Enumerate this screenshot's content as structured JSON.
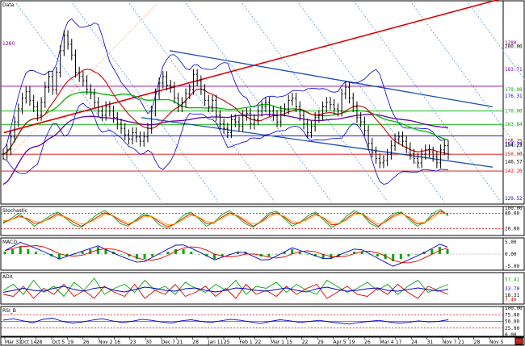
{
  "panels": {
    "price": {
      "label": "Data",
      "left_label": "1280"
    },
    "stoch": {
      "label": "Stochastic"
    },
    "macd": {
      "label": "MACD"
    },
    "adx": {
      "label": "ADX"
    },
    "rsi": {
      "label": "RSI_B"
    }
  },
  "x_ticks": [
    "Mar 31",
    "Oct 14",
    "28",
    "Oct 5",
    "19",
    "26",
    "Nov 2",
    "16",
    "23",
    "30",
    "Dec 7",
    "21",
    "28",
    "Jan 11",
    "25",
    "Feb 1",
    "22",
    "Mar 1",
    "15",
    "22",
    "29",
    "Apr 5",
    "19",
    "26",
    "Mar 4",
    "17",
    "24",
    "31",
    "Nov 7",
    "21",
    "28",
    "Nov 5"
  ],
  "colors": {
    "up": "#000000",
    "ma_red": "#cc0000",
    "ma_green": "#00bb00",
    "ma_purple": "#6600aa",
    "band": "#0000cc",
    "trend_red": "#dd0000",
    "trend_blue": "#1a4fb0",
    "hline_red": "#dd0000",
    "hline_blue": "#0000cc",
    "hline_purple": "#880088",
    "hline_green": "#00aa00",
    "dotted_blue": "#4488dd"
  },
  "chart_data": [
    {
      "type": "line",
      "name": "price",
      "title": "Data",
      "ylim": [
        128,
        220
      ],
      "y_ticks": [
        "200.00",
        "179.98",
        "170.00",
        "163.84",
        "156.25",
        "154.79",
        "154.23",
        "150.00",
        "146.57",
        "142.20",
        "129.52"
      ],
      "y_tick_colors": [
        "#000",
        "#00aa00",
        "#00aa00",
        "#00aa00",
        "#cc0000",
        "#0000cc",
        "#000",
        "#dd0000",
        "#000",
        "#dd0000",
        "#0000cc"
      ],
      "right_labels_top": [
        "1280",
        "183.71",
        "176.31"
      ],
      "right_label_top_colors": [
        "#880088",
        "#6600aa",
        "#0000cc"
      ],
      "close": [
        150,
        152,
        158,
        165,
        171,
        176,
        179,
        175,
        172,
        168,
        174,
        181,
        186,
        180,
        188,
        198,
        205,
        201,
        196,
        188,
        186,
        184,
        180,
        178,
        174,
        170,
        168,
        172,
        170,
        167,
        164,
        162,
        159,
        157,
        160,
        158,
        156,
        158,
        162,
        170,
        178,
        183,
        186,
        182,
        181,
        176,
        172,
        174,
        178,
        180,
        187,
        184,
        180,
        175,
        172,
        175,
        168,
        164,
        162,
        160,
        166,
        165,
        163,
        168,
        169,
        164,
        166,
        170,
        172,
        174,
        170,
        168,
        165,
        170,
        171,
        175,
        176,
        172,
        168,
        164,
        160,
        163,
        167,
        168,
        172,
        174,
        173,
        171,
        170,
        178,
        181,
        176,
        172,
        167,
        165,
        161,
        155,
        151,
        148,
        146,
        147,
        150,
        154,
        157,
        158,
        156,
        153,
        150,
        148,
        146,
        150,
        152,
        151,
        149,
        146,
        152,
        154,
        150
      ],
      "horizontal_levels": [
        {
          "value": 181.5,
          "color": "#880088"
        },
        {
          "value": 170.0,
          "color": "#00aa00"
        },
        {
          "value": 163.8,
          "color": "#00aa00"
        },
        {
          "value": 158.5,
          "color": "#0000cc"
        },
        {
          "value": 150.0,
          "color": "#dd0000"
        },
        {
          "value": 142.2,
          "color": "#dd0000"
        }
      ]
    },
    {
      "type": "line",
      "name": "stochastic",
      "title": "Stochastic",
      "ylim": [
        0,
        100
      ],
      "y_ticks": [
        "100.00",
        "80.00",
        "20.00"
      ],
      "series": [
        {
          "color": "#00aa00",
          "values": [
            40,
            60,
            80,
            55,
            30,
            50,
            70,
            85,
            60,
            35,
            25,
            50,
            75,
            90,
            70,
            40,
            30,
            55,
            80,
            65,
            35,
            20,
            40,
            70,
            85,
            60,
            30,
            45,
            75,
            90,
            65,
            40,
            25,
            50,
            80,
            88,
            60,
            30,
            45,
            70,
            85,
            55,
            25,
            40,
            70,
            90,
            75,
            40,
            25,
            55,
            80,
            85,
            55,
            30,
            45,
            80,
            95,
            70
          ]
        },
        {
          "color": "#dd0000",
          "values": [
            45,
            55,
            70,
            60,
            40,
            45,
            62,
            78,
            65,
            45,
            30,
            45,
            65,
            82,
            72,
            50,
            35,
            50,
            72,
            68,
            45,
            28,
            38,
            60,
            78,
            65,
            40,
            42,
            65,
            82,
            70,
            48,
            30,
            45,
            72,
            82,
            65,
            40,
            42,
            62,
            78,
            62,
            35,
            38,
            60,
            82,
            78,
            50,
            30,
            48,
            72,
            82,
            62,
            38,
            42,
            70,
            88,
            75
          ]
        },
        {
          "color": "#ff9900",
          "values": [
            50,
            55,
            65,
            62,
            48,
            46,
            58,
            72,
            66,
            52,
            38,
            44,
            58,
            76,
            72,
            56,
            42,
            48,
            66,
            68,
            52,
            36,
            38,
            54,
            72,
            66,
            48,
            44,
            60,
            76,
            72,
            54,
            38,
            44,
            64,
            78,
            68,
            48,
            44,
            56,
            72,
            64,
            44,
            40,
            54,
            76,
            78,
            58,
            38,
            46,
            66,
            78,
            66,
            46,
            44,
            62,
            82,
            78
          ]
        }
      ]
    },
    {
      "type": "bar",
      "name": "macd",
      "title": "MACD",
      "ylim": [
        -6,
        6
      ],
      "y_ticks": [
        "5.00",
        "0.00",
        "-5.00"
      ],
      "histogram": [
        1,
        2,
        3,
        2,
        1,
        0,
        -1,
        -2,
        -1,
        0,
        1,
        2,
        3,
        2,
        1,
        0,
        -1,
        -2,
        -2,
        -1,
        0,
        1,
        2,
        2,
        1,
        0,
        -1,
        -2,
        -1,
        0,
        1,
        1,
        0,
        -1,
        -1,
        0,
        1,
        2,
        1,
        0,
        -1,
        -2,
        -2,
        -1,
        0,
        1,
        1,
        0,
        -1,
        -2,
        -3,
        -2,
        -1,
        0,
        1,
        2,
        3,
        2
      ]
    },
    {
      "type": "line",
      "name": "adx",
      "title": "ADX",
      "ylim": [
        0,
        70
      ],
      "y_ticks": [
        "57.41",
        "33.70",
        "18.31",
        "7.40"
      ],
      "y_tick_colors": [
        "#00aa00",
        "#0000cc",
        "#000",
        "#dd0000"
      ],
      "series": [
        {
          "color": "#00aa00",
          "values": [
            30,
            45,
            20,
            55,
            25,
            40,
            15,
            50,
            30,
            60,
            20,
            35,
            45,
            25,
            55,
            30,
            40,
            20,
            50,
            35,
            25,
            45,
            30,
            55,
            20,
            40,
            35,
            50,
            25,
            45,
            30,
            20,
            55,
            40,
            25,
            35,
            50,
            30,
            45,
            20,
            40,
            55,
            25,
            35,
            45
          ]
        },
        {
          "color": "#dd0000",
          "values": [
            20,
            15,
            40,
            10,
            35,
            20,
            45,
            15,
            30,
            10,
            40,
            25,
            15,
            45,
            10,
            30,
            20,
            45,
            15,
            25,
            40,
            15,
            35,
            10,
            45,
            20,
            30,
            15,
            40,
            20,
            35,
            45,
            10,
            25,
            40,
            20,
            15,
            35,
            20,
            45,
            25,
            10,
            40,
            30,
            20
          ]
        },
        {
          "color": "#0000cc",
          "values": [
            25,
            30,
            35,
            30,
            28,
            35,
            40,
            32,
            28,
            35,
            38,
            30,
            26,
            32,
            38,
            35,
            30,
            28,
            34,
            36,
            30,
            26,
            30,
            36,
            34,
            30,
            28,
            32,
            36,
            30,
            26,
            34,
            38,
            32,
            28,
            30,
            34,
            36,
            30,
            28,
            32,
            36,
            32,
            28,
            33
          ]
        }
      ]
    },
    {
      "type": "line",
      "name": "rsi",
      "title": "RSI_B",
      "ylim": [
        0,
        100
      ],
      "y_ticks": [
        "100.00",
        "75.00",
        "50.00",
        "25.00",
        "0.00"
      ],
      "series": [
        {
          "color": "#0000cc",
          "values": [
            55,
            60,
            52,
            45,
            58,
            62,
            50,
            44,
            48,
            55,
            60,
            52,
            46,
            50,
            58,
            54,
            48,
            44,
            52,
            56,
            50,
            46,
            52,
            58,
            54,
            48,
            42,
            50,
            56,
            52,
            46,
            50,
            54,
            48,
            44,
            40,
            46,
            50,
            54,
            48,
            44,
            46,
            52,
            48,
            50,
            56
          ]
        }
      ]
    }
  ]
}
